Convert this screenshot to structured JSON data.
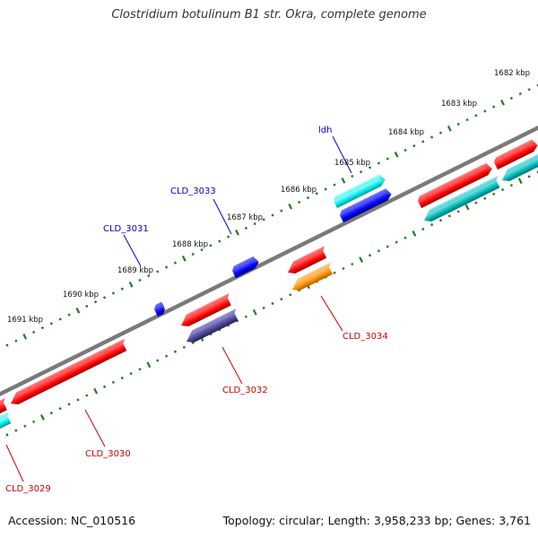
{
  "title": "Clostridium botulinum B1 str. Okra, complete genome",
  "footer": {
    "accession": "Accession: NC_010516",
    "summary": "Topology: circular; Length: 3,958,233 bp; Genes: 3,761"
  },
  "colors": {
    "backbone": "#7a7a7a",
    "ticks": "#1f7a1f",
    "forward_label": "#0000cc",
    "reverse_label": "#cc0000",
    "red": "#ff0000",
    "cyan": "#00e5e5",
    "blue": "#0000ee",
    "teal": "#00b5b5",
    "purple": "#463f8c",
    "orange": "#ff8c00"
  },
  "ticks": [
    "1682 kbp",
    "1683 kbp",
    "1684 kbp",
    "1685 kbp",
    "1686 kbp",
    "1687 kbp",
    "1688 kbp",
    "1689 kbp",
    "1690 kbp",
    "1691 kbp"
  ],
  "gene_labels": {
    "ldh": "ldh",
    "cld_3033": "CLD_3033",
    "cld_3031": "CLD_3031",
    "cld_3034": "CLD_3034",
    "cld_3032": "CLD_3032",
    "cld_3030": "CLD_3030",
    "cld_3029": "CLD_3029"
  }
}
